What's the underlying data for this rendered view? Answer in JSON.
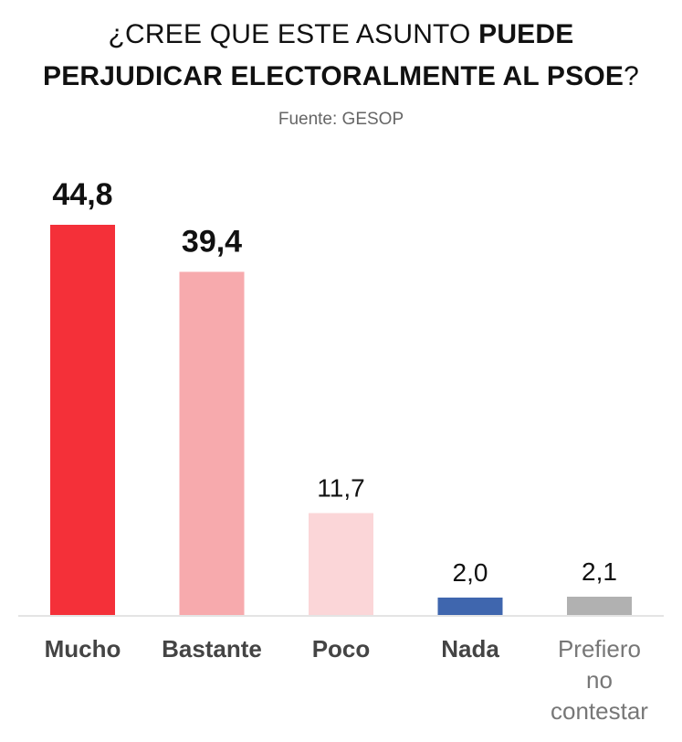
{
  "header": {
    "title_line1_light": "¿CREE QUE ESTE ASUNTO ",
    "title_line1_bold": "PUEDE",
    "title_line2_bold": "PERJUDICAR ELECTORALMENTE AL PSOE",
    "title_line2_light": "?",
    "source": "Fuente: GESOP"
  },
  "chart_data": {
    "type": "bar",
    "title": "¿CREE QUE ESTE ASUNTO PUEDE PERJUDICAR ELECTORALMENTE AL PSOE?",
    "subtitle": "Fuente: GESOP",
    "categories": [
      "Mucho",
      "Bastante",
      "Poco",
      "Nada",
      "Prefiero no contestar"
    ],
    "category_lines": [
      [
        "Mucho"
      ],
      [
        "Bastante"
      ],
      [
        "Poco"
      ],
      [
        "Nada"
      ],
      [
        "Prefiero",
        "no",
        "contestar"
      ]
    ],
    "values": [
      44.8,
      39.4,
      11.7,
      2.0,
      2.1
    ],
    "value_labels": [
      "44,8",
      "39,4",
      "11,7",
      "2,0",
      "2,1"
    ],
    "bold_values": [
      true,
      true,
      false,
      false,
      false
    ],
    "bold_categories": [
      true,
      true,
      true,
      true,
      false
    ],
    "colors": [
      "#f43039",
      "#f7aaad",
      "#fbd6d8",
      "#3f66ae",
      "#b1b1b1"
    ],
    "ylim": [
      0,
      44.8
    ],
    "grid": false,
    "legend": "none"
  }
}
